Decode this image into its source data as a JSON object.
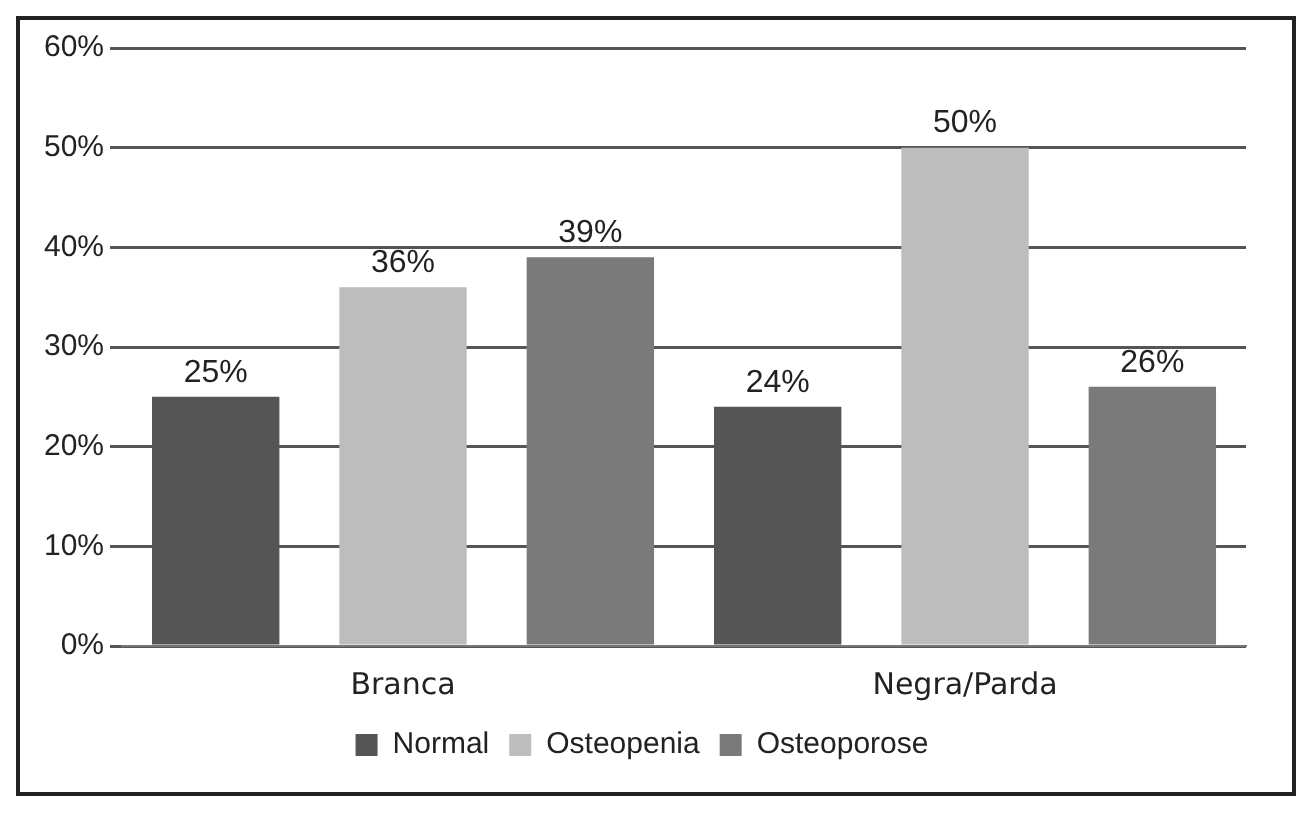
{
  "chart_data": {
    "type": "bar",
    "categories": [
      "Branca",
      "Negra/Parda"
    ],
    "series": [
      {
        "name": "Normal",
        "color": "#555555",
        "values": [
          25,
          24
        ],
        "value_labels": [
          "25%",
          "24%"
        ]
      },
      {
        "name": "Osteopenia",
        "color": "#bdbdbd",
        "values": [
          36,
          50
        ],
        "value_labels": [
          "36%",
          "50%"
        ]
      },
      {
        "name": "Osteoporose",
        "color": "#7a7a7a",
        "values": [
          39,
          26
        ],
        "value_labels": [
          "39%",
          "26%"
        ]
      }
    ],
    "ylim": [
      0,
      60
    ],
    "yticks": [
      {
        "value": 0,
        "label": "0%"
      },
      {
        "value": 10,
        "label": "10%"
      },
      {
        "value": 20,
        "label": "20%"
      },
      {
        "value": 30,
        "label": "30%"
      },
      {
        "value": 40,
        "label": "40%"
      },
      {
        "value": 50,
        "label": "50%"
      },
      {
        "value": 60,
        "label": "60%"
      }
    ],
    "grid": "y",
    "legend": "bottom"
  }
}
